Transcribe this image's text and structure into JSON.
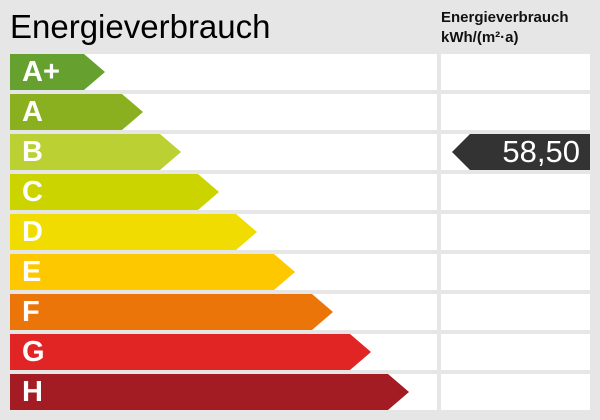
{
  "title": "Energieverbrauch",
  "column_header": {
    "line1": "Energieverbrauch",
    "line2": "kWh/(m²·a)"
  },
  "chart_data": {
    "type": "bar",
    "categories": [
      "A+",
      "A",
      "B",
      "C",
      "D",
      "E",
      "F",
      "G",
      "H"
    ],
    "colors": [
      "#66a02f",
      "#8bb01f",
      "#bad033",
      "#ccd400",
      "#f0dc00",
      "#fdc800",
      "#eb7508",
      "#e12424",
      "#a31b23"
    ],
    "value": "58,50",
    "value_class": "B",
    "value_color": "#333333"
  }
}
